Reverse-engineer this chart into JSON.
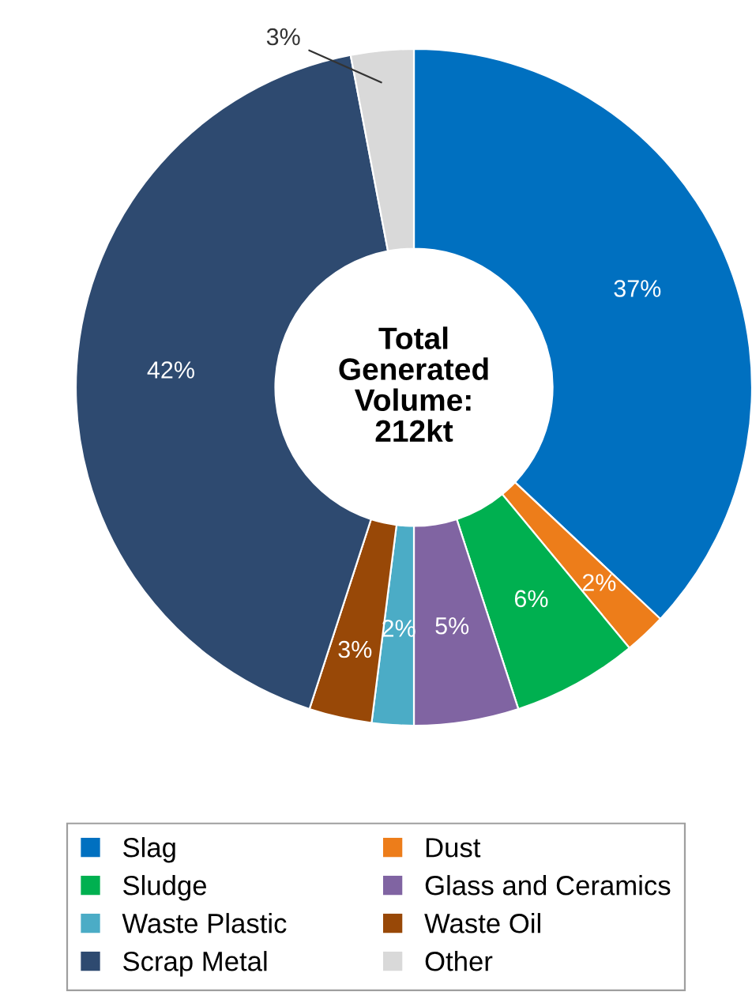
{
  "chart_data": {
    "type": "donut",
    "categories": [
      "Slag",
      "Dust",
      "Sludge",
      "Glass and Ceramics",
      "Waste Plastic",
      "Waste Oil",
      "Scrap Metal",
      "Other"
    ],
    "values": [
      37,
      2,
      6,
      5,
      2,
      3,
      42,
      3
    ],
    "colors": [
      "#0070c0",
      "#ed7d1a",
      "#00b050",
      "#8064a2",
      "#4bacc6",
      "#984807",
      "#2e4a70",
      "#d9d9d9"
    ],
    "value_labels": [
      "37%",
      "2%",
      "6%",
      "5%",
      "2%",
      "3%",
      "42%",
      "3%"
    ],
    "annotations": [
      "Total\nGenerated\nVolume:\n212kt"
    ],
    "legend": "bottom"
  }
}
